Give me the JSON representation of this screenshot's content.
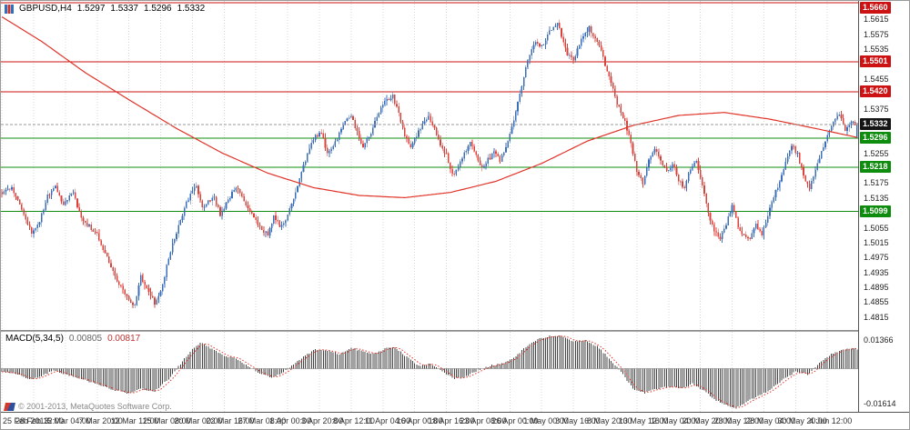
{
  "info": {
    "symbol_period": "GBPUSD,H4",
    "open": "1.5297",
    "high": "1.5337",
    "low": "1.5296",
    "close": "1.5332"
  },
  "indicator_label": {
    "name": "MACD(5,34,5)",
    "main_value": "0.00805",
    "signal_value": "0.00817"
  },
  "footer": {
    "copyright": "© 2001-2013, MetaQuotes Software Corp."
  },
  "chart_data": {
    "type": "candlestick",
    "title": "GBPUSD H4 candlestick chart with SMA and MACD(5,34,5)",
    "symbol": "GBPUSD",
    "timeframe": "H4",
    "candle_count": 432,
    "label_every_n": 16,
    "ylim": [
      1.4795,
      1.5655
    ],
    "grid": "vertical-dotted",
    "y_ticks": [
      "1.5615",
      "1.5575",
      "1.5535",
      "1.5495",
      "1.5455",
      "1.5415",
      "1.5375",
      "1.5335",
      "1.5295",
      "1.5255",
      "1.5215",
      "1.5175",
      "1.5135",
      "1.5095",
      "1.5055",
      "1.5015",
      "1.4975",
      "1.4935",
      "1.4895",
      "1.4855",
      "1.4815"
    ],
    "x_labels": [
      "25 Feb 2013",
      "28 Feb 12:00",
      "5 Mar 04:00",
      "7 Mar 20:00",
      "12 Mar 12:00",
      "15 Mar 08:00",
      "20 Mar 00:00",
      "22 Mar 16:00",
      "27 Mar 08:00",
      "1 Apr 00:00",
      "3 Apr 20:00",
      "8 Apr 12:00",
      "11 Apr 04:00",
      "16 Apr 00:00",
      "18 Apr 16:00",
      "23 Apr 08:00",
      "26 Apr 00:00",
      "1 May 00:00",
      "3 May 16:00",
      "8 May 20:00",
      "13 May 12:00",
      "16 May 04:00",
      "20 May 20:00",
      "23 May 12:00",
      "28 May 04:00",
      "30 May 20:00",
      "4 Jun 12:00"
    ],
    "colors": {
      "up": "#3d6fb8",
      "down": "#d8433c",
      "ma": "#e03328",
      "grid": "#d8d8d8",
      "hist": "#454545",
      "signal": "#e03328"
    },
    "price_anchors": [
      [
        0,
        1.515
      ],
      [
        5,
        1.5162
      ],
      [
        10,
        1.5105
      ],
      [
        15,
        1.504
      ],
      [
        19,
        1.5075
      ],
      [
        23,
        1.514
      ],
      [
        27,
        1.5165
      ],
      [
        31,
        1.512
      ],
      [
        36,
        1.5148
      ],
      [
        40,
        1.508
      ],
      [
        44,
        1.506
      ],
      [
        48,
        1.5035
      ],
      [
        52,
        1.4985
      ],
      [
        56,
        1.4935
      ],
      [
        60,
        1.4895
      ],
      [
        64,
        1.4862
      ],
      [
        67,
        1.4845
      ],
      [
        70,
        1.4925
      ],
      [
        73,
        1.489
      ],
      [
        77,
        1.4852
      ],
      [
        80,
        1.488
      ],
      [
        83,
        1.495
      ],
      [
        86,
        1.501
      ],
      [
        89,
        1.506
      ],
      [
        92,
        1.5105
      ],
      [
        95,
        1.5148
      ],
      [
        98,
        1.5165
      ],
      [
        101,
        1.5105
      ],
      [
        104,
        1.5128
      ],
      [
        107,
        1.5138
      ],
      [
        110,
        1.509
      ],
      [
        113,
        1.5118
      ],
      [
        116,
        1.5148
      ],
      [
        119,
        1.5162
      ],
      [
        122,
        1.5128
      ],
      [
        125,
        1.5098
      ],
      [
        128,
        1.5072
      ],
      [
        131,
        1.5048
      ],
      [
        134,
        1.5038
      ],
      [
        137,
        1.5085
      ],
      [
        140,
        1.5058
      ],
      [
        143,
        1.5072
      ],
      [
        146,
        1.5118
      ],
      [
        149,
        1.5165
      ],
      [
        152,
        1.522
      ],
      [
        155,
        1.5268
      ],
      [
        158,
        1.53
      ],
      [
        161,
        1.5312
      ],
      [
        164,
        1.5252
      ],
      [
        167,
        1.527
      ],
      [
        170,
        1.531
      ],
      [
        173,
        1.5342
      ],
      [
        176,
        1.5355
      ],
      [
        179,
        1.531
      ],
      [
        182,
        1.5275
      ],
      [
        185,
        1.53
      ],
      [
        188,
        1.5338
      ],
      [
        191,
        1.5375
      ],
      [
        194,
        1.5402
      ],
      [
        197,
        1.5408
      ],
      [
        200,
        1.536
      ],
      [
        203,
        1.5305
      ],
      [
        206,
        1.5275
      ],
      [
        209,
        1.5302
      ],
      [
        212,
        1.5335
      ],
      [
        215,
        1.5358
      ],
      [
        218,
        1.5322
      ],
      [
        221,
        1.528
      ],
      [
        224,
        1.5252
      ],
      [
        227,
        1.5195
      ],
      [
        230,
        1.5215
      ],
      [
        233,
        1.5255
      ],
      [
        236,
        1.5282
      ],
      [
        239,
        1.5252
      ],
      [
        242,
        1.5215
      ],
      [
        245,
        1.5238
      ],
      [
        248,
        1.526
      ],
      [
        251,
        1.5232
      ],
      [
        254,
        1.5275
      ],
      [
        257,
        1.5322
      ],
      [
        260,
        1.539
      ],
      [
        263,
        1.5462
      ],
      [
        266,
        1.552
      ],
      [
        269,
        1.5555
      ],
      [
        272,
        1.5542
      ],
      [
        275,
        1.5572
      ],
      [
        278,
        1.5598
      ],
      [
        280,
        1.5605
      ],
      [
        282,
        1.5572
      ],
      [
        285,
        1.5522
      ],
      [
        288,
        1.5505
      ],
      [
        291,
        1.5548
      ],
      [
        294,
        1.5578
      ],
      [
        296,
        1.5592
      ],
      [
        299,
        1.5565
      ],
      [
        302,
        1.5528
      ],
      [
        305,
        1.5478
      ],
      [
        308,
        1.5425
      ],
      [
        311,
        1.5375
      ],
      [
        314,
        1.534
      ],
      [
        317,
        1.5282
      ],
      [
        320,
        1.5205
      ],
      [
        323,
        1.5178
      ],
      [
        326,
        1.5242
      ],
      [
        329,
        1.5268
      ],
      [
        332,
        1.5232
      ],
      [
        335,
        1.5205
      ],
      [
        338,
        1.5228
      ],
      [
        341,
        1.5185
      ],
      [
        344,
        1.5158
      ],
      [
        347,
        1.5215
      ],
      [
        350,
        1.5238
      ],
      [
        353,
        1.5172
      ],
      [
        356,
        1.5095
      ],
      [
        359,
        1.5048
      ],
      [
        362,
        1.5022
      ],
      [
        365,
        1.5065
      ],
      [
        368,
        1.5112
      ],
      [
        371,
        1.5062
      ],
      [
        374,
        1.5032
      ],
      [
        377,
        1.5022
      ],
      [
        380,
        1.5062
      ],
      [
        383,
        1.5035
      ],
      [
        386,
        1.5085
      ],
      [
        389,
        1.5142
      ],
      [
        392,
        1.518
      ],
      [
        395,
        1.5232
      ],
      [
        398,
        1.5278
      ],
      [
        401,
        1.5252
      ],
      [
        404,
        1.5192
      ],
      [
        407,
        1.5162
      ],
      [
        410,
        1.5212
      ],
      [
        413,
        1.5262
      ],
      [
        416,
        1.53
      ],
      [
        419,
        1.5338
      ],
      [
        422,
        1.5362
      ],
      [
        425,
        1.5312
      ],
      [
        428,
        1.5338
      ],
      [
        431,
        1.5332
      ]
    ],
    "ma_anchors": [
      [
        0,
        1.5622
      ],
      [
        20,
        1.5556
      ],
      [
        42,
        1.5472
      ],
      [
        65,
        1.5396
      ],
      [
        88,
        1.5322
      ],
      [
        111,
        1.5256
      ],
      [
        134,
        1.5202
      ],
      [
        157,
        1.5163
      ],
      [
        180,
        1.5142
      ],
      [
        203,
        1.5136
      ],
      [
        226,
        1.515
      ],
      [
        249,
        1.518
      ],
      [
        272,
        1.5228
      ],
      [
        295,
        1.5288
      ],
      [
        318,
        1.533
      ],
      [
        341,
        1.5357
      ],
      [
        364,
        1.5365
      ],
      [
        387,
        1.5347
      ],
      [
        410,
        1.5322
      ],
      [
        431,
        1.5298
      ]
    ],
    "last_candle": {
      "open": 1.5297,
      "high": 1.5337,
      "low": 1.5296,
      "close": 1.5332
    },
    "levels": [
      {
        "price": 1.566,
        "label": "1.5660",
        "color": "#cc1212",
        "kind": "resistance"
      },
      {
        "price": 1.5501,
        "label": "1.5501",
        "color": "#cc1212",
        "kind": "resistance"
      },
      {
        "price": 1.542,
        "label": "1.5420",
        "color": "#cc1212",
        "kind": "resistance"
      },
      {
        "price": 1.5296,
        "label": "1.5296",
        "color": "#0e8c0e",
        "kind": "support"
      },
      {
        "price": 1.5218,
        "label": "1.5218",
        "color": "#0e8c0e",
        "kind": "support"
      },
      {
        "price": 1.5099,
        "label": "1.5099",
        "color": "#0e8c0e",
        "kind": "support"
      }
    ],
    "current_price": {
      "price": 1.5332,
      "label": "1.5332",
      "badge_color": "#151515"
    },
    "macd": {
      "params": "5,34,5",
      "ylim": [
        -0.01614,
        0.01366
      ],
      "y_max_label": "0.01366",
      "y_min_label": "-0.01614",
      "anchors": [
        [
          0,
          -0.001
        ],
        [
          8,
          -0.0022
        ],
        [
          14,
          -0.0045
        ],
        [
          20,
          -0.003
        ],
        [
          26,
          -0.0008
        ],
        [
          32,
          -0.0022
        ],
        [
          40,
          -0.0042
        ],
        [
          48,
          -0.0062
        ],
        [
          56,
          -0.0086
        ],
        [
          64,
          -0.0102
        ],
        [
          70,
          -0.0082
        ],
        [
          77,
          -0.0092
        ],
        [
          84,
          -0.0042
        ],
        [
          90,
          0.002
        ],
        [
          96,
          0.008
        ],
        [
          100,
          0.0106
        ],
        [
          106,
          0.0082
        ],
        [
          112,
          0.0052
        ],
        [
          118,
          0.0042
        ],
        [
          124,
          0.0012
        ],
        [
          130,
          -0.002
        ],
        [
          136,
          -0.0036
        ],
        [
          141,
          -0.002
        ],
        [
          146,
          0.0012
        ],
        [
          152,
          0.005
        ],
        [
          158,
          0.008
        ],
        [
          164,
          0.0074
        ],
        [
          170,
          0.006
        ],
        [
          176,
          0.0086
        ],
        [
          182,
          0.007
        ],
        [
          188,
          0.006
        ],
        [
          194,
          0.0086
        ],
        [
          198,
          0.009
        ],
        [
          204,
          0.005
        ],
        [
          210,
          0.0012
        ],
        [
          216,
          0.0022
        ],
        [
          222,
          -0.0012
        ],
        [
          228,
          -0.004
        ],
        [
          234,
          -0.003
        ],
        [
          240,
          -0.0006
        ],
        [
          246,
          0.0012
        ],
        [
          252,
          0.0022
        ],
        [
          258,
          0.0042
        ],
        [
          264,
          0.009
        ],
        [
          270,
          0.012
        ],
        [
          276,
          0.0134
        ],
        [
          282,
          0.0136
        ],
        [
          288,
          0.0112
        ],
        [
          294,
          0.0116
        ],
        [
          300,
          0.0092
        ],
        [
          306,
          0.0042
        ],
        [
          312,
          -0.0012
        ],
        [
          318,
          -0.0082
        ],
        [
          324,
          -0.01
        ],
        [
          330,
          -0.0082
        ],
        [
          336,
          -0.0072
        ],
        [
          342,
          -0.0082
        ],
        [
          348,
          -0.0062
        ],
        [
          354,
          -0.0092
        ],
        [
          360,
          -0.013
        ],
        [
          366,
          -0.0152
        ],
        [
          370,
          -0.0161
        ],
        [
          376,
          -0.0132
        ],
        [
          382,
          -0.011
        ],
        [
          388,
          -0.0082
        ],
        [
          394,
          -0.0042
        ],
        [
          400,
          -0.0012
        ],
        [
          406,
          -0.0022
        ],
        [
          412,
          0.0022
        ],
        [
          418,
          0.0062
        ],
        [
          424,
          0.008
        ],
        [
          428,
          0.0084
        ],
        [
          431,
          0.0081
        ]
      ]
    }
  }
}
